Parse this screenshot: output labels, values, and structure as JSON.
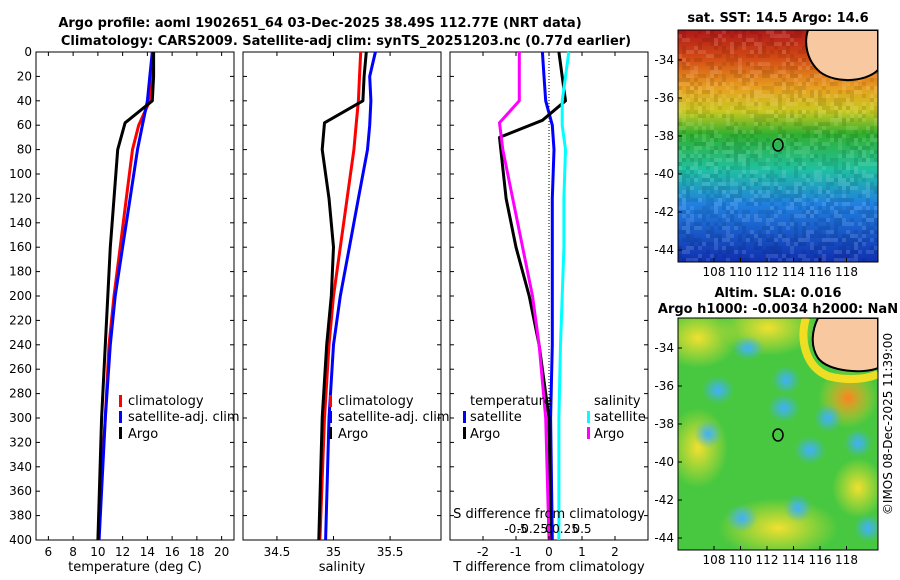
{
  "header": {
    "title_line1": "Argo profile: aoml 1902651_64 03-Dec-2025 38.49S 112.77E (NRT data)",
    "title_line2": "Climatology: CARS2009. Satellite-adj clim: synTS_20251203.nc (0.77d earlier)"
  },
  "colors": {
    "climatology": "#ff0000",
    "satellite": "#0000ff",
    "argo": "#000000",
    "salinity_satellite": "#00ffff",
    "salinity_argo": "#ff00ff",
    "land": "#f8c8a0"
  },
  "depth_axis": {
    "ticks": [
      "0",
      "20",
      "40",
      "60",
      "80",
      "100",
      "120",
      "140",
      "160",
      "180",
      "200",
      "220",
      "240",
      "260",
      "280",
      "300",
      "320",
      "340",
      "360",
      "380",
      "400"
    ],
    "range": [
      0,
      400
    ]
  },
  "chart_data": [
    {
      "type": "line",
      "id": "temperature",
      "xlabel": "temperature (deg C)",
      "xlim": [
        5,
        21
      ],
      "xticks": [
        6,
        8,
        10,
        12,
        14,
        16,
        18,
        20
      ],
      "ylim": [
        0,
        400
      ],
      "legend": [
        "climatology",
        "satellite-adj. clim",
        "Argo"
      ],
      "series": [
        {
          "name": "climatology",
          "color": "#ff0000",
          "x": [
            14.4,
            14.4,
            14.2,
            13.3,
            12.8,
            12.3,
            11.8,
            11.3,
            10.9,
            10.6,
            10.0
          ],
          "depth": [
            0,
            20,
            40,
            60,
            80,
            120,
            160,
            200,
            240,
            300,
            400
          ]
        },
        {
          "name": "satellite-adj. clim",
          "color": "#0000ff",
          "x": [
            14.4,
            14.2,
            14.0,
            13.6,
            13.2,
            12.6,
            12.0,
            11.4,
            11.0,
            10.6,
            10.1
          ],
          "depth": [
            0,
            20,
            40,
            60,
            80,
            120,
            160,
            200,
            240,
            300,
            400
          ]
        },
        {
          "name": "Argo",
          "color": "#000000",
          "x": [
            14.5,
            14.5,
            14.4,
            12.2,
            11.6,
            11.3,
            11.0,
            10.8,
            10.6,
            10.3,
            10.0
          ],
          "depth": [
            0,
            20,
            40,
            58,
            80,
            120,
            160,
            200,
            240,
            300,
            400
          ]
        }
      ]
    },
    {
      "type": "line",
      "id": "salinity",
      "xlabel": "salinity",
      "xlim": [
        34.2,
        35.95
      ],
      "xticks": [
        34.5,
        35,
        35.5
      ],
      "xticklabels": [
        "34.5",
        "35",
        "35.5"
      ],
      "ylim": [
        0,
        400
      ],
      "legend": [
        "climatology",
        "satellite-adj. clim",
        "Argo"
      ],
      "series": [
        {
          "name": "climatology",
          "color": "#ff0000",
          "x": [
            35.24,
            35.23,
            35.22,
            35.2,
            35.18,
            35.12,
            35.06,
            35.0,
            34.96,
            34.92,
            34.88
          ],
          "depth": [
            0,
            20,
            40,
            60,
            80,
            120,
            160,
            200,
            240,
            300,
            400
          ]
        },
        {
          "name": "satellite-adj. clim",
          "color": "#0000ff",
          "x": [
            35.37,
            35.32,
            35.33,
            35.32,
            35.3,
            35.22,
            35.14,
            35.06,
            35.0,
            34.96,
            34.93
          ],
          "depth": [
            0,
            20,
            40,
            60,
            80,
            120,
            160,
            200,
            240,
            300,
            400
          ]
        },
        {
          "name": "Argo",
          "color": "#000000",
          "x": [
            35.29,
            35.27,
            35.26,
            34.92,
            34.9,
            34.96,
            35.0,
            34.98,
            34.94,
            34.9,
            34.87
          ],
          "depth": [
            0,
            20,
            40,
            58,
            80,
            120,
            160,
            200,
            240,
            300,
            400
          ]
        }
      ]
    },
    {
      "type": "line",
      "id": "difference",
      "xlabel": "T difference from climatology",
      "xlabel_top": "S difference from climatology",
      "xlim": [
        -3,
        3
      ],
      "xticks": [
        -2,
        -1,
        0,
        1,
        2
      ],
      "xticks_salinity": [
        "-0.5",
        "-0.25",
        "0",
        "0.25",
        "0.5"
      ],
      "ylim": [
        0,
        400
      ],
      "legend_temperature": {
        "title": "temperature",
        "items": [
          "satellite",
          "Argo"
        ]
      },
      "legend_salinity": {
        "title": "salinity",
        "items": [
          "satellite",
          "Argo"
        ]
      },
      "series": [
        {
          "name": "temperature satellite",
          "color": "#0000ff",
          "x": [
            -0.2,
            -0.15,
            -0.1,
            0.1,
            0.15,
            0.1,
            0.1,
            0.1,
            0.1,
            0.05,
            0.1
          ],
          "depth": [
            0,
            20,
            40,
            60,
            80,
            120,
            160,
            200,
            240,
            300,
            400
          ]
        },
        {
          "name": "temperature Argo",
          "color": "#000000",
          "x": [
            0.3,
            0.4,
            0.5,
            -0.2,
            -1.5,
            -1.3,
            -1.0,
            -0.6,
            -0.3,
            0.0,
            0.05
          ],
          "depth": [
            0,
            20,
            40,
            56,
            70,
            120,
            160,
            200,
            240,
            300,
            400
          ]
        },
        {
          "name": "salinity satellite",
          "color": "#00ffff",
          "x": [
            0.6,
            0.5,
            0.4,
            0.4,
            0.5,
            0.45,
            0.45,
            0.4,
            0.35,
            0.3,
            0.3
          ],
          "depth": [
            0,
            20,
            40,
            60,
            80,
            120,
            160,
            200,
            240,
            300,
            400
          ]
        },
        {
          "name": "salinity Argo",
          "color": "#ff00ff",
          "x": [
            -0.9,
            -0.9,
            -0.9,
            -1.5,
            -1.4,
            -1.1,
            -0.8,
            -0.5,
            -0.3,
            -0.1,
            0.0
          ],
          "depth": [
            0,
            20,
            40,
            58,
            80,
            120,
            160,
            200,
            240,
            300,
            400
          ]
        }
      ]
    }
  ],
  "maps": {
    "sst": {
      "title": "sat. SST: 14.5 Argo: 14.6",
      "lat_ticks": [
        "-34",
        "-36",
        "-38",
        "-40",
        "-42",
        "-44"
      ],
      "lon_ticks": [
        "108",
        "110",
        "112",
        "114",
        "116",
        "118"
      ]
    },
    "sla": {
      "title_line1": "Altim. SLA: 0.016",
      "title_line2": "Argo h1000: -0.0034 h2000: NaN",
      "lat_ticks": [
        "-34",
        "-36",
        "-38",
        "-40",
        "-42",
        "-44"
      ],
      "lon_ticks": [
        "108",
        "110",
        "112",
        "114",
        "116",
        "118"
      ]
    }
  },
  "footer": {
    "credit": "©IMOS 08-Dec-2025 11:39:00"
  }
}
